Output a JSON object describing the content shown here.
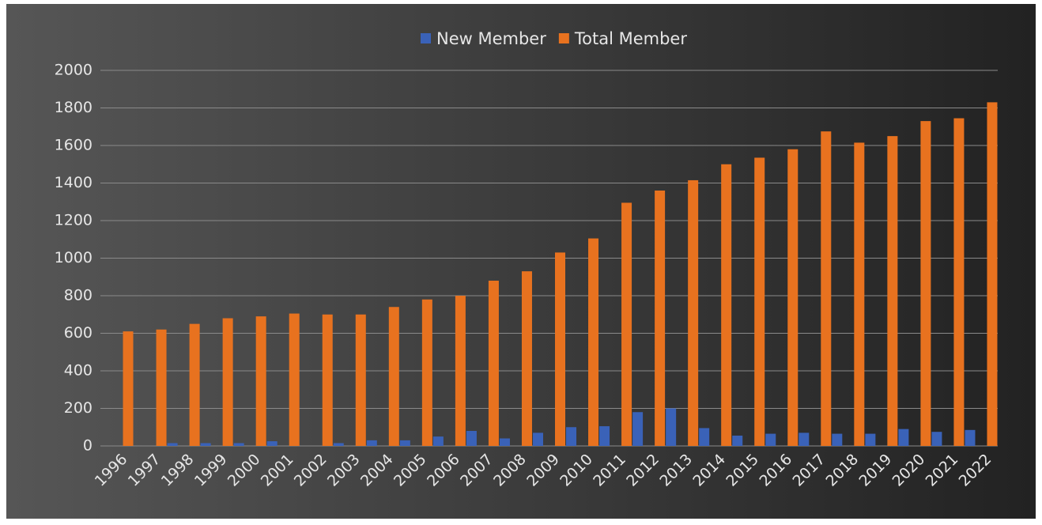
{
  "chart_data": {
    "type": "bar",
    "categories": [
      "1996",
      "1997",
      "1998",
      "1999",
      "2000",
      "2001",
      "2002",
      "2003",
      "2004",
      "2005",
      "2006",
      "2007",
      "2008",
      "2009",
      "2010",
      "2011",
      "2012",
      "2013",
      "2014",
      "2015",
      "2016",
      "2017",
      "2018",
      "2019",
      "2020",
      "2021",
      "2022"
    ],
    "series": [
      {
        "name": "New Member",
        "color": "#3a62b8",
        "values": [
          0,
          0,
          15,
          15,
          15,
          25,
          0,
          15,
          30,
          30,
          50,
          80,
          40,
          70,
          100,
          105,
          180,
          200,
          95,
          55,
          65,
          70,
          65,
          65,
          90,
          75,
          85
        ]
      },
      {
        "name": "Total Member",
        "color": "#e8721f",
        "values": [
          610,
          620,
          650,
          680,
          690,
          705,
          700,
          700,
          740,
          780,
          800,
          880,
          930,
          1030,
          1105,
          1295,
          1360,
          1415,
          1500,
          1535,
          1580,
          1675,
          1615,
          1650,
          1730,
          1745,
          1830
        ]
      }
    ],
    "ylim": [
      0,
      2000
    ],
    "yticks": [
      0,
      200,
      400,
      600,
      800,
      1000,
      1200,
      1400,
      1600,
      1800,
      2000
    ],
    "grid": true,
    "legend": "top"
  }
}
